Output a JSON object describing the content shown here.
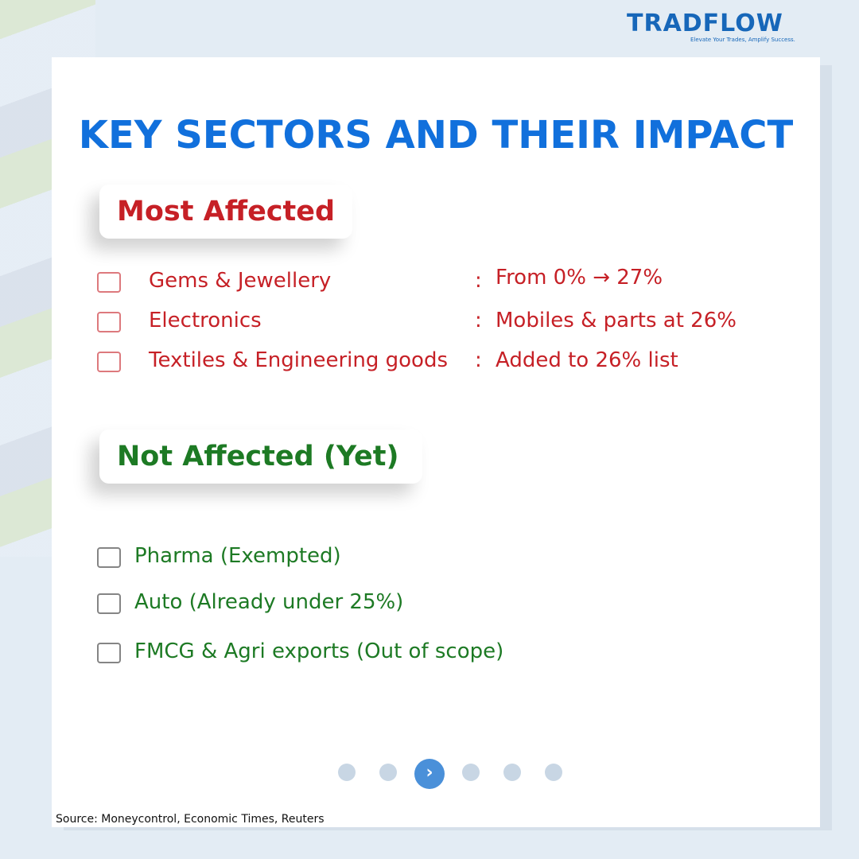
{
  "brand": {
    "name": "TRADFLOW",
    "tagline": "Elevate Your Trades, Amplify Success."
  },
  "title": "KEY SECTORS AND THEIR IMPACT",
  "most_affected": {
    "heading": "Most Affected",
    "rows": [
      {
        "sector": "Gems & Jewellery",
        "sep": ":",
        "detail": "From 0% → 27%"
      },
      {
        "sector": "Electronics",
        "sep": ":",
        "detail": "Mobiles & parts at 26%"
      },
      {
        "sector": "Textiles & Engineering goods",
        "sep": ":",
        "detail": "Added to 26% list"
      }
    ]
  },
  "not_affected": {
    "heading": "Not Affected (Yet)",
    "items": [
      "Pharma (Exempted)",
      "Auto (Already under 25%)",
      "FMCG & Agri exports (Out of scope)"
    ]
  },
  "source": "Source: Moneycontrol, Economic Times, Reuters"
}
